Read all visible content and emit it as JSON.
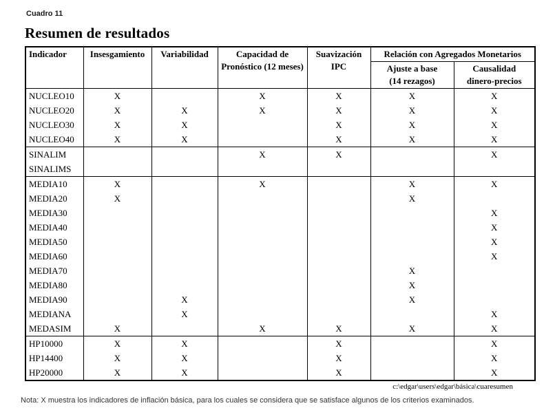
{
  "page": {
    "kicker": "Cuadro 11",
    "title": "Resumen de resultados",
    "path_note": "c:\\edgar\\users\\edgar\\básica\\cuaresumen",
    "footnote": "Nota: X muestra los indicadores de inflación básica, para los cuales se considera que se satisface algunos de los criterios examinados."
  },
  "colors": {
    "text": "#000000",
    "background": "#ffffff",
    "border": "#000000",
    "footnote_text": "#333333"
  },
  "table": {
    "headers": {
      "indicador": "Indicador",
      "insesgamiento": "Insesgamiento",
      "variabilidad": "Variabilidad",
      "capacidad_line1": "Capacidad de",
      "capacidad_line2": "Pronóstico (12 meses)",
      "suavizacion_line1": "Suavización",
      "suavizacion_line2": "IPC",
      "relacion_group": "Relación con Agregados Monetarios",
      "ajuste_line1": "Ajuste a base",
      "ajuste_line2": "(14 rezagos)",
      "causalidad_line1": "Causalidad",
      "causalidad_line2": "dinero-precios"
    },
    "criteria_columns": [
      "Insesgamiento",
      "Variabilidad",
      "Capacidad de Pronóstico (12 meses)",
      "Suavización IPC",
      "Ajuste a base (14 rezagos)",
      "Causalidad dinero-precios"
    ],
    "groups": [
      {
        "rows": [
          {
            "label": "NUCLEO10",
            "cells": [
              "X",
              "",
              "X",
              "X",
              "X",
              "X"
            ]
          },
          {
            "label": "NUCLEO20",
            "cells": [
              "X",
              "X",
              "X",
              "X",
              "X",
              "X"
            ]
          },
          {
            "label": "NUCLEO30",
            "cells": [
              "X",
              "X",
              "",
              "X",
              "X",
              "X"
            ]
          },
          {
            "label": "NUCLEO40",
            "cells": [
              "X",
              "X",
              "",
              "X",
              "X",
              "X"
            ]
          }
        ]
      },
      {
        "rows": [
          {
            "label": "SINALIM",
            "cells": [
              "",
              "",
              "X",
              "X",
              "",
              "X"
            ]
          },
          {
            "label": "SINALIMS",
            "cells": [
              "",
              "",
              "",
              "",
              "",
              ""
            ]
          }
        ]
      },
      {
        "rows": [
          {
            "label": "MEDIA10",
            "cells": [
              "X",
              "",
              "X",
              "",
              "X",
              "X"
            ]
          },
          {
            "label": "MEDIA20",
            "cells": [
              "X",
              "",
              "",
              "",
              "X",
              ""
            ]
          },
          {
            "label": "MEDIA30",
            "cells": [
              "",
              "",
              "",
              "",
              "",
              "X"
            ]
          },
          {
            "label": "MEDIA40",
            "cells": [
              "",
              "",
              "",
              "",
              "",
              "X"
            ]
          },
          {
            "label": "MEDIA50",
            "cells": [
              "",
              "",
              "",
              "",
              "",
              "X"
            ]
          },
          {
            "label": "MEDIA60",
            "cells": [
              "",
              "",
              "",
              "",
              "",
              "X"
            ]
          },
          {
            "label": "MEDIA70",
            "cells": [
              "",
              "",
              "",
              "",
              "X",
              ""
            ]
          },
          {
            "label": "MEDIA80",
            "cells": [
              "",
              "",
              "",
              "",
              "X",
              ""
            ]
          },
          {
            "label": "MEDIA90",
            "cells": [
              "",
              "X",
              "",
              "",
              "X",
              ""
            ]
          },
          {
            "label": "MEDIANA",
            "cells": [
              "",
              "X",
              "",
              "",
              "",
              "X"
            ]
          },
          {
            "label": "MEDASIM",
            "cells": [
              "X",
              "",
              "X",
              "X",
              "X",
              "X"
            ]
          }
        ]
      },
      {
        "rows": [
          {
            "label": "HP10000",
            "cells": [
              "X",
              "X",
              "",
              "X",
              "",
              "X"
            ]
          },
          {
            "label": "HP14400",
            "cells": [
              "X",
              "X",
              "",
              "X",
              "",
              "X"
            ]
          },
          {
            "label": "HP20000",
            "cells": [
              "X",
              "X",
              "",
              "X",
              "",
              "X"
            ]
          }
        ]
      }
    ]
  }
}
